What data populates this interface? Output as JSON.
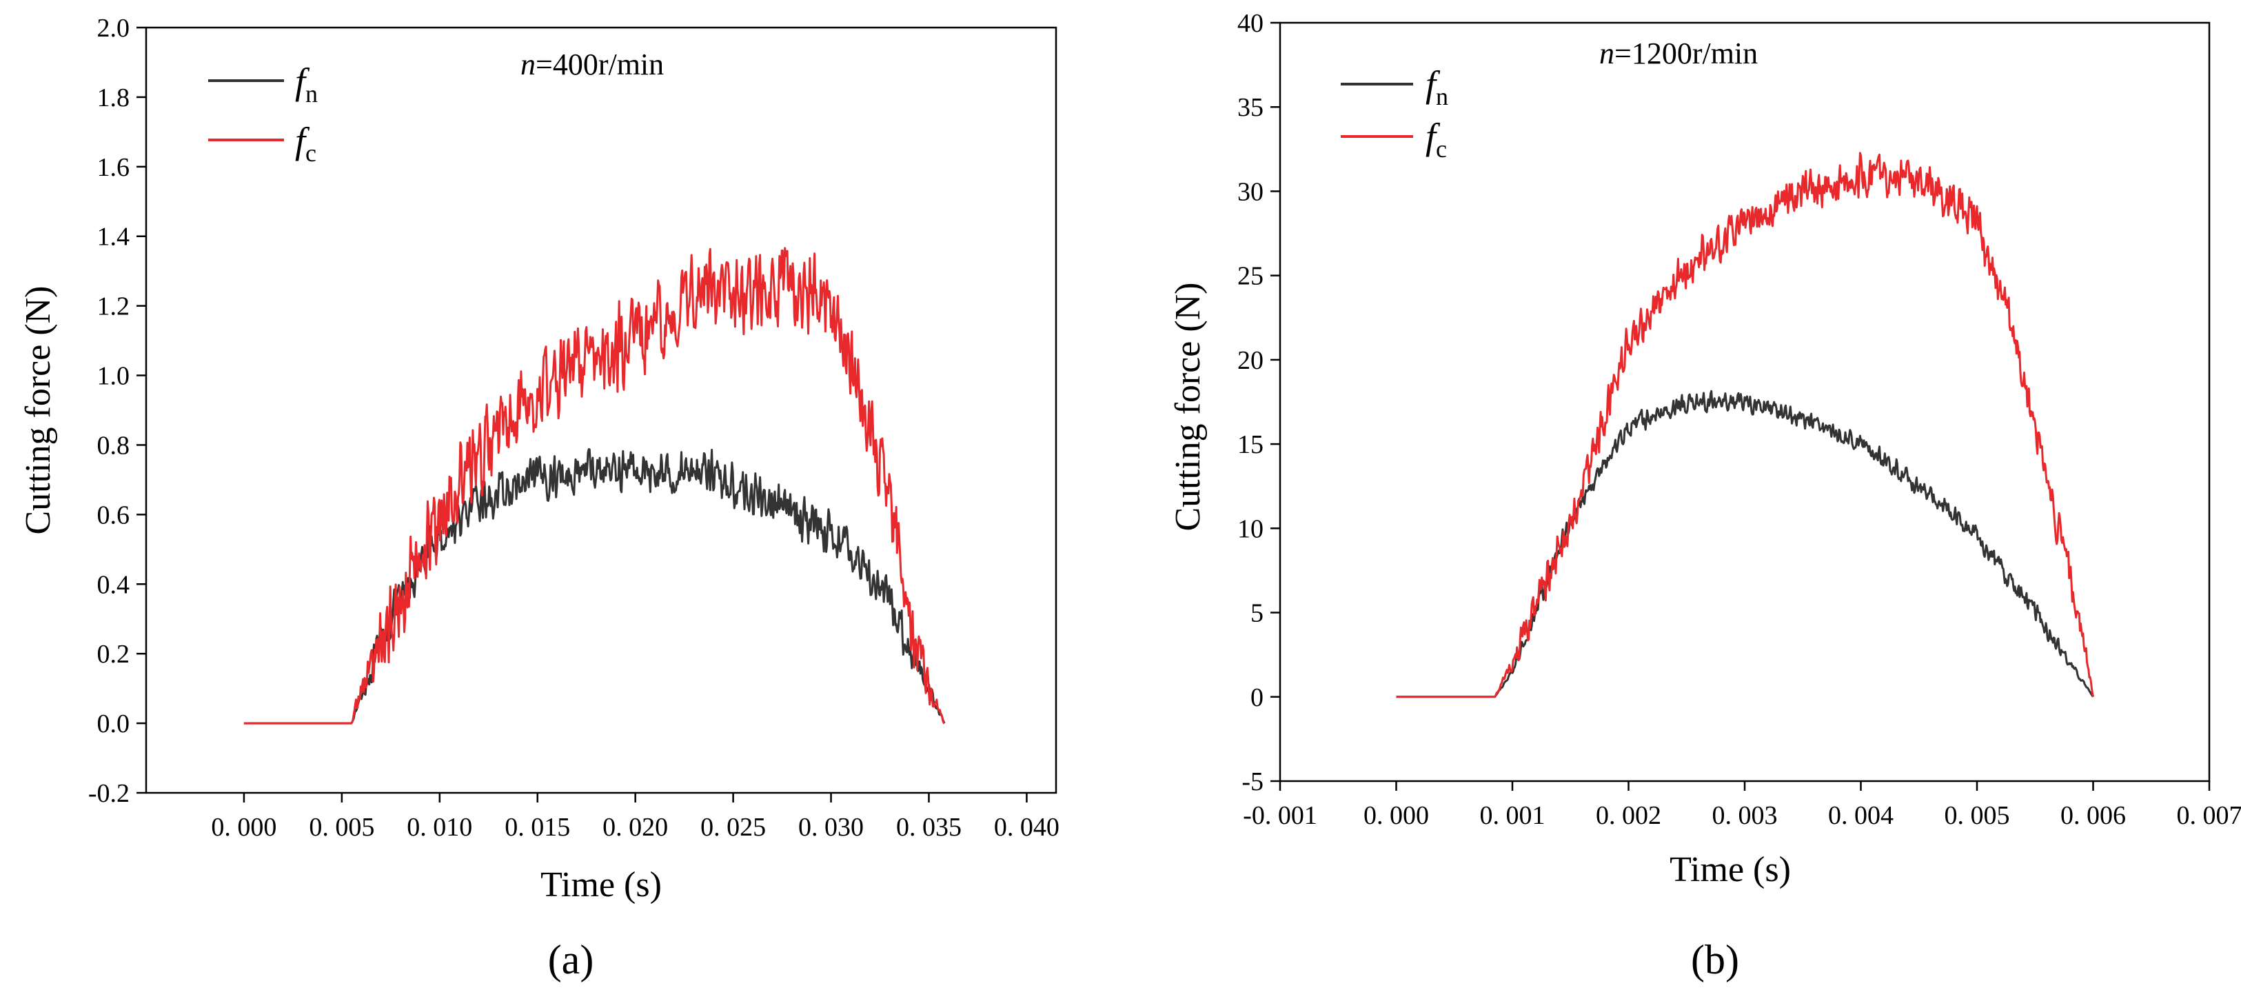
{
  "chart_data": [
    {
      "type": "line",
      "panel_label": "(a)",
      "annotation": {
        "var": "n",
        "rest": "=400r/min"
      },
      "xlabel": "Time (s)",
      "ylabel": "Cutting force (N)",
      "xlim": [
        -0.005,
        0.0415
      ],
      "ylim": [
        -0.2,
        2.0
      ],
      "xticks": [
        0.0,
        0.005,
        0.01,
        0.015,
        0.02,
        0.025,
        0.03,
        0.035,
        0.04
      ],
      "xtick_labels": [
        "0. 000",
        "0. 005",
        "0. 010",
        "0. 015",
        "0. 020",
        "0. 025",
        "0. 030",
        "0. 035",
        "0. 040"
      ],
      "yticks": [
        -0.2,
        0.0,
        0.2,
        0.4,
        0.6,
        0.8,
        1.0,
        1.2,
        1.4,
        1.6,
        1.8,
        2.0
      ],
      "ytick_labels": [
        "-0.2",
        "0.0",
        "0.2",
        "0.4",
        "0.6",
        "0.8",
        "1.0",
        "1.2",
        "1.4",
        "1.6",
        "1.8",
        "2.0"
      ],
      "legend_position": "top-left",
      "series": [
        {
          "name": "fn",
          "legend_main": "f",
          "legend_sub": "n",
          "color": "#333333",
          "noise": 0.07,
          "x": [
            0.0,
            0.0055,
            0.006,
            0.0075,
            0.0095,
            0.012,
            0.015,
            0.0175,
            0.0195,
            0.022,
            0.0235,
            0.025,
            0.0275,
            0.03,
            0.031,
            0.033,
            0.034,
            0.035,
            0.0358
          ],
          "y": [
            0.0,
            0.0,
            0.08,
            0.3,
            0.5,
            0.63,
            0.7,
            0.73,
            0.73,
            0.72,
            0.74,
            0.68,
            0.62,
            0.55,
            0.5,
            0.35,
            0.22,
            0.1,
            0.0
          ]
        },
        {
          "name": "fc",
          "legend_main": "f",
          "legend_sub": "c",
          "color": "#e8282b",
          "noise": 0.14,
          "x": [
            0.0,
            0.0055,
            0.006,
            0.008,
            0.01,
            0.012,
            0.015,
            0.017,
            0.02,
            0.022,
            0.0235,
            0.025,
            0.028,
            0.03,
            0.031,
            0.032,
            0.033,
            0.034,
            0.0345,
            0.0358
          ],
          "y": [
            0.0,
            0.0,
            0.1,
            0.35,
            0.6,
            0.78,
            0.95,
            1.03,
            1.1,
            1.18,
            1.3,
            1.22,
            1.25,
            1.2,
            1.05,
            0.85,
            0.6,
            0.35,
            0.18,
            0.0
          ]
        }
      ]
    },
    {
      "type": "line",
      "panel_label": "(b)",
      "annotation": {
        "var": "n",
        "rest": "=1200r/min"
      },
      "xlabel": "Time (s)",
      "ylabel": "Cutting force (N)",
      "xlim": [
        -0.001,
        0.007
      ],
      "ylim": [
        -5,
        40
      ],
      "xticks": [
        -0.001,
        0.0,
        0.001,
        0.002,
        0.003,
        0.004,
        0.005,
        0.006,
        0.007
      ],
      "xtick_labels": [
        "-0. 001",
        "0. 000",
        "0. 001",
        "0. 002",
        "0. 003",
        "0. 004",
        "0. 005",
        "0. 006",
        "0. 007"
      ],
      "yticks": [
        -5,
        0,
        5,
        10,
        15,
        20,
        25,
        30,
        35,
        40
      ],
      "ytick_labels": [
        "-5",
        "0",
        "5",
        "10",
        "15",
        "20",
        "25",
        "30",
        "35",
        "40"
      ],
      "legend_position": "top-left",
      "series": [
        {
          "name": "fn",
          "legend_main": "f",
          "legend_sub": "n",
          "color": "#333333",
          "noise": 0.7,
          "x": [
            0.0,
            0.00085,
            0.001,
            0.0015,
            0.002,
            0.0025,
            0.003,
            0.0035,
            0.004,
            0.0045,
            0.005,
            0.0055,
            0.006
          ],
          "y": [
            0.0,
            0.0,
            1.5,
            10.5,
            16.0,
            17.5,
            17.5,
            16.5,
            15.0,
            12.5,
            9.5,
            5.0,
            0.0
          ]
        },
        {
          "name": "fc",
          "legend_main": "f",
          "legend_sub": "c",
          "color": "#e8282b",
          "noise": 1.4,
          "x": [
            0.0,
            0.00085,
            0.001,
            0.0015,
            0.002,
            0.0025,
            0.003,
            0.0035,
            0.004,
            0.0045,
            0.005,
            0.0053,
            0.0055,
            0.0057,
            0.0059,
            0.006
          ],
          "y": [
            0.0,
            0.0,
            2.0,
            10.0,
            21.0,
            25.5,
            28.0,
            30.0,
            31.0,
            31.0,
            28.0,
            22.0,
            16.0,
            10.0,
            4.0,
            0.0
          ]
        }
      ]
    }
  ]
}
